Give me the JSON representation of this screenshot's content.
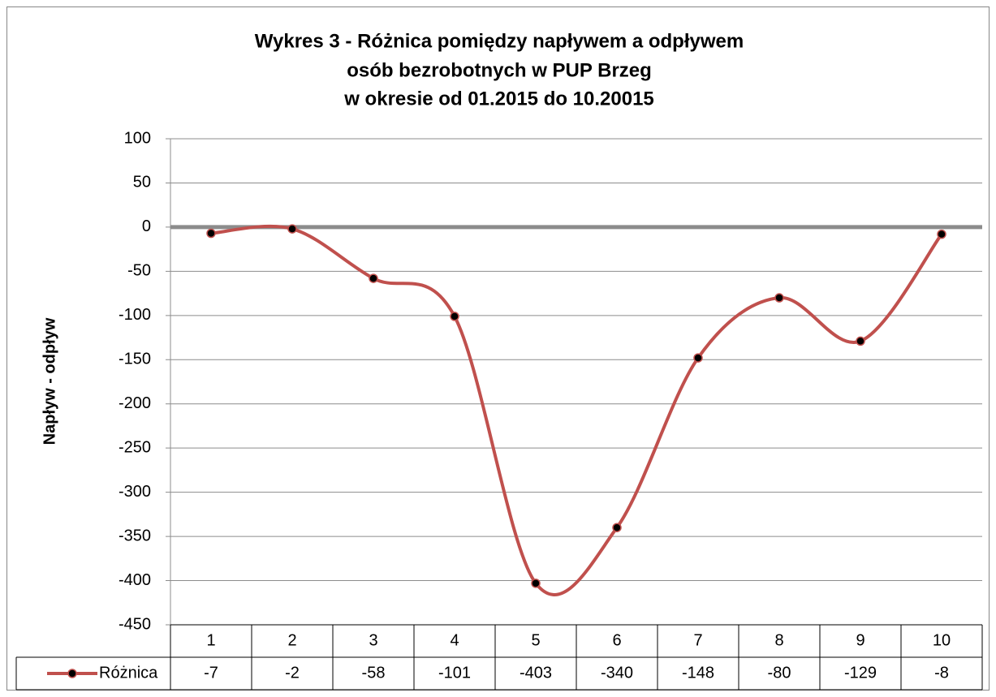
{
  "chart_data": {
    "type": "line",
    "title": [
      "Wykres 3 - Różnica pomiędzy napływem a odpływem",
      "osób bezrobotnych w PUP Brzeg",
      "w okresie od 01.2015 do 10.20015"
    ],
    "ylabel": "Napływ - odpływ",
    "categories": [
      "1",
      "2",
      "3",
      "4",
      "5",
      "6",
      "7",
      "8",
      "9",
      "10"
    ],
    "series": [
      {
        "name": "Różnica",
        "color": "#c0504d",
        "values": [
          -7,
          -2,
          -58,
          -101,
          -403,
          -340,
          -148,
          -80,
          -129,
          -8
        ]
      }
    ],
    "ylim": [
      -450,
      100
    ],
    "yticks": [
      100,
      50,
      0,
      -50,
      -100,
      -150,
      -200,
      -250,
      -300,
      -350,
      -400,
      -450
    ],
    "grid": true,
    "smooth": true,
    "data_table": true
  }
}
